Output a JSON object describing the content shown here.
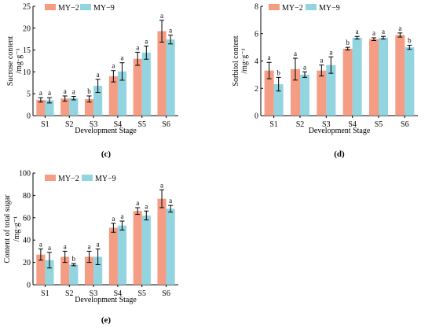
{
  "colors": {
    "my2": "#F28C6E",
    "my9": "#7FCCD9",
    "axis": "#000000",
    "errbar": "#000000"
  },
  "chart_data": [
    {
      "id": "c",
      "type": "bar",
      "panel_label": "(c)",
      "title": "",
      "xlabel": "Development Stage",
      "ylabel": "Sucrose content",
      "yunit": "/mg·g⁻¹",
      "ylim": [
        0,
        25
      ],
      "yticks": [
        0,
        5,
        10,
        15,
        20,
        25
      ],
      "categories": [
        "S1",
        "S2",
        "S3",
        "S4",
        "S5",
        "S6"
      ],
      "legend_position": "top-left",
      "series": [
        {
          "name": "MY−2",
          "color_key": "my2",
          "values": [
            3.6,
            3.9,
            3.8,
            9.0,
            13.0,
            19.3
          ],
          "errors": [
            0.5,
            0.6,
            0.7,
            1.3,
            1.5,
            2.5
          ],
          "labels": [
            "a",
            "a",
            "b",
            "a",
            "a",
            "a"
          ]
        },
        {
          "name": "MY−9",
          "color_key": "my9",
          "values": [
            3.5,
            4.0,
            6.8,
            10.1,
            14.4,
            17.4
          ],
          "errors": [
            0.6,
            0.4,
            1.5,
            2.0,
            1.5,
            1.0
          ],
          "labels": [
            "a",
            "a",
            "a",
            "a",
            "a",
            "a"
          ]
        }
      ]
    },
    {
      "id": "d",
      "type": "bar",
      "panel_label": "(d)",
      "title": "",
      "xlabel": "Development Stage",
      "ylabel": "Sorbitol content",
      "yunit": "/mg·g⁻¹",
      "ylim": [
        0,
        8
      ],
      "yticks": [
        0,
        2,
        4,
        6,
        8
      ],
      "categories": [
        "S1",
        "S2",
        "S3",
        "S4",
        "S5",
        "S6"
      ],
      "legend_position": "top",
      "series": [
        {
          "name": "MY−2",
          "color_key": "my2",
          "values": [
            3.3,
            3.4,
            3.3,
            4.9,
            5.6,
            5.9
          ],
          "errors": [
            0.6,
            0.8,
            0.4,
            0.1,
            0.1,
            0.15
          ],
          "labels": [
            "a",
            "a",
            "a",
            "b",
            "a",
            "a"
          ]
        },
        {
          "name": "MY−9",
          "color_key": "my9",
          "values": [
            2.3,
            3.0,
            3.7,
            5.7,
            5.7,
            5.0
          ],
          "errors": [
            0.5,
            0.2,
            0.6,
            0.1,
            0.1,
            0.15
          ],
          "labels": [
            "b",
            "a",
            "a",
            "a",
            "a",
            "b"
          ]
        }
      ]
    },
    {
      "id": "e",
      "type": "bar",
      "panel_label": "(e)",
      "title": "",
      "xlabel": "Development Stage",
      "ylabel": "Content of total sugar",
      "yunit": "/mg·g⁻¹",
      "ylim": [
        0,
        100
      ],
      "yticks": [
        0,
        20,
        40,
        60,
        80,
        100
      ],
      "categories": [
        "S1",
        "S2",
        "S3",
        "S4",
        "S5",
        "S6"
      ],
      "legend_position": "top",
      "series": [
        {
          "name": "MY−2",
          "color_key": "my2",
          "values": [
            27,
            25,
            25,
            51,
            66,
            77
          ],
          "errors": [
            5,
            5,
            5,
            4,
            3,
            8
          ],
          "labels": [
            "a",
            "a",
            "a",
            "a",
            "a",
            "a"
          ]
        },
        {
          "name": "MY−9",
          "color_key": "my9",
          "values": [
            22,
            18,
            25,
            53,
            62,
            68
          ],
          "errors": [
            7,
            1,
            7,
            4,
            4,
            3
          ],
          "labels": [
            "a",
            "b",
            "a",
            "a",
            "a",
            "a"
          ]
        }
      ]
    }
  ]
}
